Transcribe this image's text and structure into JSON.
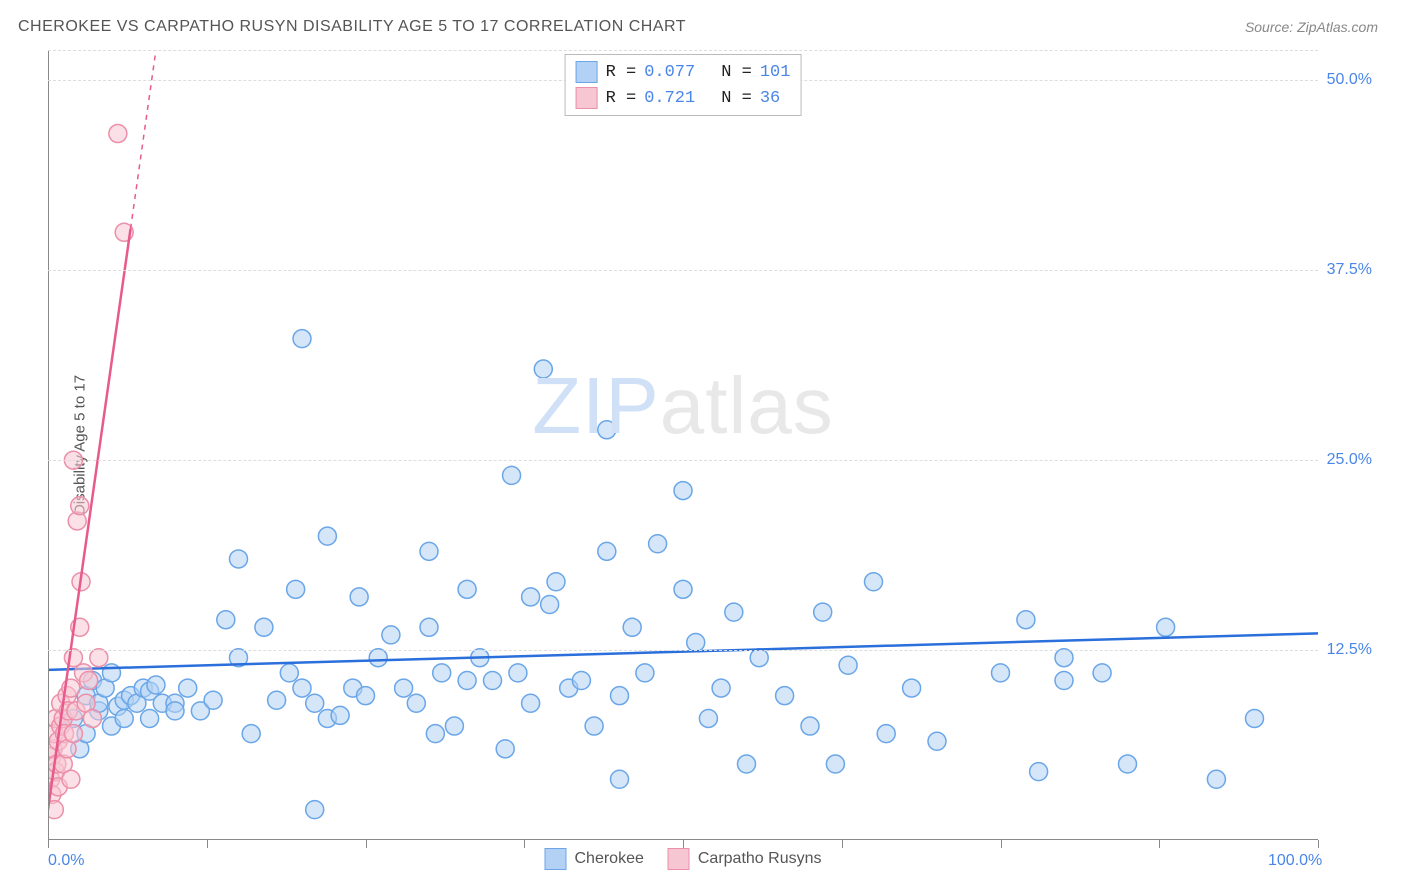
{
  "title": "CHEROKEE VS CARPATHO RUSYN DISABILITY AGE 5 TO 17 CORRELATION CHART",
  "source": "Source: ZipAtlas.com",
  "y_axis_label": "Disability Age 5 to 17",
  "watermark": {
    "part1": "ZIP",
    "part2": "atlas"
  },
  "chart": {
    "type": "scatter",
    "xlim": [
      0,
      100
    ],
    "ylim": [
      0,
      52
    ],
    "background_color": "#ffffff",
    "grid_color": "#dddddd",
    "axis_color": "#888888",
    "x_ticks": [
      0,
      12.5,
      25,
      37.5,
      50,
      62.5,
      75,
      87.5,
      100
    ],
    "x_tick_labels": [
      {
        "pos": 0,
        "label": "0.0%"
      },
      {
        "pos": 100,
        "label": "100.0%"
      }
    ],
    "y_gridlines": [
      12.5,
      25,
      37.5,
      50,
      52
    ],
    "y_tick_labels": [
      {
        "pos": 12.5,
        "label": "12.5%"
      },
      {
        "pos": 25,
        "label": "25.0%"
      },
      {
        "pos": 37.5,
        "label": "37.5%"
      },
      {
        "pos": 50,
        "label": "50.0%"
      }
    ],
    "marker_radius": 9,
    "marker_stroke_width": 1.5,
    "line_width": 2.5,
    "series": [
      {
        "name": "Cherokee",
        "fill_color": "#b3d1f4",
        "stroke_color": "#6aa6e8",
        "fill_opacity": 0.55,
        "R": "0.077",
        "N": "101",
        "trend": {
          "x1": 0,
          "y1": 11.2,
          "x2": 100,
          "y2": 13.6,
          "color": "#2a6fdb"
        },
        "points": [
          [
            2,
            8
          ],
          [
            2.5,
            6
          ],
          [
            3,
            9.5
          ],
          [
            3,
            7
          ],
          [
            3.5,
            10.5
          ],
          [
            4,
            8.5
          ],
          [
            4,
            9
          ],
          [
            4.5,
            10
          ],
          [
            5,
            7.5
          ],
          [
            5,
            11
          ],
          [
            5.5,
            8.8
          ],
          [
            6,
            9.2
          ],
          [
            6,
            8
          ],
          [
            6.5,
            9.5
          ],
          [
            7,
            9
          ],
          [
            7.5,
            10
          ],
          [
            8,
            8
          ],
          [
            8,
            9.8
          ],
          [
            8.5,
            10.2
          ],
          [
            9,
            9
          ],
          [
            10,
            9
          ],
          [
            10,
            8.5
          ],
          [
            11,
            10
          ],
          [
            12,
            8.5
          ],
          [
            13,
            9.2
          ],
          [
            14,
            14.5
          ],
          [
            15,
            18.5
          ],
          [
            15,
            12
          ],
          [
            16,
            7
          ],
          [
            17,
            14
          ],
          [
            18,
            9.2
          ],
          [
            19,
            11
          ],
          [
            19.5,
            16.5
          ],
          [
            20,
            33
          ],
          [
            20,
            10
          ],
          [
            21,
            2
          ],
          [
            21,
            9
          ],
          [
            22,
            8
          ],
          [
            22,
            20
          ],
          [
            23,
            8.2
          ],
          [
            24,
            10
          ],
          [
            24.5,
            16
          ],
          [
            25,
            9.5
          ],
          [
            26,
            12
          ],
          [
            27,
            13.5
          ],
          [
            28,
            10
          ],
          [
            29,
            9
          ],
          [
            30,
            19
          ],
          [
            30,
            14
          ],
          [
            30.5,
            7
          ],
          [
            31,
            11
          ],
          [
            32,
            7.5
          ],
          [
            33,
            16.5
          ],
          [
            33,
            10.5
          ],
          [
            34,
            12
          ],
          [
            35,
            10.5
          ],
          [
            36,
            6
          ],
          [
            36.5,
            24
          ],
          [
            37,
            11
          ],
          [
            38,
            9
          ],
          [
            38,
            16
          ],
          [
            39,
            31
          ],
          [
            39.5,
            15.5
          ],
          [
            40,
            17
          ],
          [
            41,
            10
          ],
          [
            42,
            10.5
          ],
          [
            43,
            7.5
          ],
          [
            44,
            27
          ],
          [
            44,
            19
          ],
          [
            45,
            9.5
          ],
          [
            45,
            4
          ],
          [
            46,
            14
          ],
          [
            47,
            11
          ],
          [
            48,
            19.5
          ],
          [
            50,
            23
          ],
          [
            50,
            16.5
          ],
          [
            51,
            13
          ],
          [
            52,
            8
          ],
          [
            53,
            10
          ],
          [
            54,
            15
          ],
          [
            55,
            5
          ],
          [
            56,
            12
          ],
          [
            58,
            9.5
          ],
          [
            60,
            7.5
          ],
          [
            61,
            15
          ],
          [
            62,
            5
          ],
          [
            63,
            11.5
          ],
          [
            65,
            17
          ],
          [
            66,
            7
          ],
          [
            68,
            10
          ],
          [
            70,
            6.5
          ],
          [
            75,
            11
          ],
          [
            77,
            14.5
          ],
          [
            78,
            4.5
          ],
          [
            80,
            12
          ],
          [
            80,
            10.5
          ],
          [
            83,
            11
          ],
          [
            85,
            5
          ],
          [
            88,
            14
          ],
          [
            92,
            4
          ],
          [
            95,
            8
          ]
        ]
      },
      {
        "name": "Carpatho Rusyns",
        "fill_color": "#f7c6d3",
        "stroke_color": "#ec8fa8",
        "fill_opacity": 0.55,
        "R": "0.721",
        "N": "36",
        "trend": {
          "x1": 0,
          "y1": 2,
          "x2": 8.5,
          "y2": 52,
          "color": "#e85a8c",
          "extend_dashed": true,
          "solid_to_x": 6.5
        },
        "points": [
          [
            0.2,
            4
          ],
          [
            0.3,
            5.5
          ],
          [
            0.3,
            3
          ],
          [
            0.4,
            6
          ],
          [
            0.5,
            2
          ],
          [
            0.5,
            7
          ],
          [
            0.6,
            4.5
          ],
          [
            0.6,
            8
          ],
          [
            0.7,
            5
          ],
          [
            0.8,
            6.5
          ],
          [
            0.8,
            3.5
          ],
          [
            1,
            7.5
          ],
          [
            1,
            9
          ],
          [
            1.2,
            8
          ],
          [
            1.2,
            5
          ],
          [
            1.3,
            7
          ],
          [
            1.5,
            9.5
          ],
          [
            1.5,
            6
          ],
          [
            1.6,
            8.5
          ],
          [
            1.8,
            10
          ],
          [
            1.8,
            4
          ],
          [
            2,
            12
          ],
          [
            2,
            7
          ],
          [
            2,
            25
          ],
          [
            2.2,
            8.5
          ],
          [
            2.3,
            21
          ],
          [
            2.5,
            14
          ],
          [
            2.5,
            22
          ],
          [
            2.6,
            17
          ],
          [
            2.8,
            11
          ],
          [
            3,
            9
          ],
          [
            3.2,
            10.5
          ],
          [
            3.5,
            8
          ],
          [
            4,
            12
          ],
          [
            5.5,
            46.5
          ],
          [
            6,
            40
          ]
        ]
      }
    ]
  },
  "legend_top": [
    {
      "swatch_fill": "#b3d1f4",
      "swatch_stroke": "#6aa6e8",
      "R_label": "R =",
      "R": "0.077",
      "N_label": "N =",
      "N": "101"
    },
    {
      "swatch_fill": "#f7c6d3",
      "swatch_stroke": "#ec8fa8",
      "R_label": "R =",
      "R": "0.721",
      "N_label": "N =",
      "N": " 36"
    }
  ],
  "legend_bottom": [
    {
      "swatch_fill": "#b3d1f4",
      "swatch_stroke": "#6aa6e8",
      "label": "Cherokee"
    },
    {
      "swatch_fill": "#f7c6d3",
      "swatch_stroke": "#ec8fa8",
      "label": "Carpatho Rusyns"
    }
  ]
}
